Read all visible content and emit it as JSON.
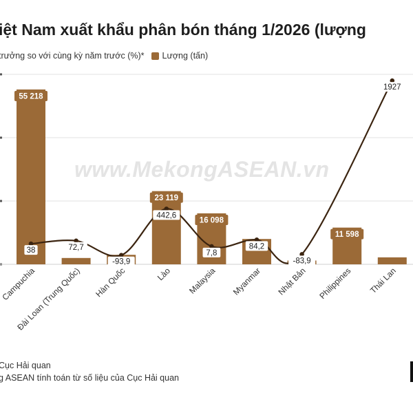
{
  "title": "iệt Nam xuất khẩu phân bón tháng 1/2026 (lượng",
  "legend": {
    "growth_label": "trưởng so với cùng kỳ năm trước (%)*",
    "volume_label": "Lượng (tấn)"
  },
  "watermark": "www.MekongASEAN.vn",
  "source": {
    "line1": "Cục Hải quan",
    "line2": "g ASEAN tính toán từ số liệu của Cục Hải quan"
  },
  "colors": {
    "bar": "#9b6a37",
    "line": "#3b2410",
    "grid": "#e2e2e2",
    "label_bg": "#ffffff",
    "label_bg_dark": "#9b6a37"
  },
  "chart_data": {
    "type": "bar",
    "categories": [
      "Campuchia",
      "Đài Loan (Trung Quốc)",
      "Hàn Quốc",
      "Lào",
      "Malaysia",
      "Myanmar",
      "Nhật Bản",
      "Philippines",
      "Thái Lan"
    ],
    "series": [
      {
        "name": "Lượng (tấn)",
        "type": "bar",
        "values": [
          55218,
          2000,
          3000,
          23119,
          16098,
          8000,
          1200,
          11598,
          2200
        ],
        "labels": [
          "55 218",
          "",
          "",
          "23 119",
          "16 098",
          "",
          "",
          "11 598",
          ""
        ]
      },
      {
        "name": "trưởng so với cùng kỳ năm trước (%)*",
        "type": "line",
        "values": [
          38,
          72.7,
          -93.9,
          442.6,
          7.8,
          84.2,
          -83.9,
          null,
          1927
        ],
        "labels": [
          "38",
          "72,7",
          "-93,9",
          "442,6",
          "7,8",
          "84,2",
          "-83,9",
          "",
          "1927"
        ]
      }
    ],
    "ylim": [
      0,
      60000
    ],
    "y2lim": [
      -200,
      2000
    ],
    "xlabel": "",
    "ylabel": "",
    "grid": true,
    "legend_position": "top-left"
  }
}
